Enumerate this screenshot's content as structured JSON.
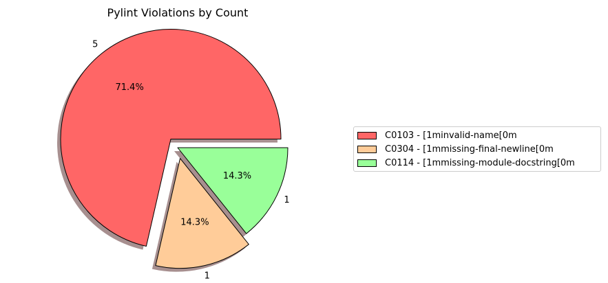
{
  "chart_data": {
    "type": "pie",
    "title": "Pylint Violations by Count",
    "slices": [
      {
        "code": "C0103",
        "label": "C0103 - \u001b[1minvalid-name\u001b[0m",
        "value": 5,
        "value_label": "5",
        "pct_label": "71.4%",
        "color": "#ff6666",
        "explode": true
      },
      {
        "code": "C0304",
        "label": "C0304 - \u001b[1mmissing-final-newline\u001b[0m",
        "value": 1,
        "value_label": "1",
        "pct_label": "14.3%",
        "color": "#ffcc99",
        "explode": true
      },
      {
        "code": "C0114",
        "label": "C0114 - \u001b[1mmissing-module-docstring\u001b[0m",
        "value": 1,
        "value_label": "1",
        "pct_label": "14.3%",
        "color": "#99ff99",
        "explode": false
      }
    ],
    "start_angle": 0,
    "direction": "counterclockwise",
    "shadow": true,
    "legend_position": "right"
  }
}
